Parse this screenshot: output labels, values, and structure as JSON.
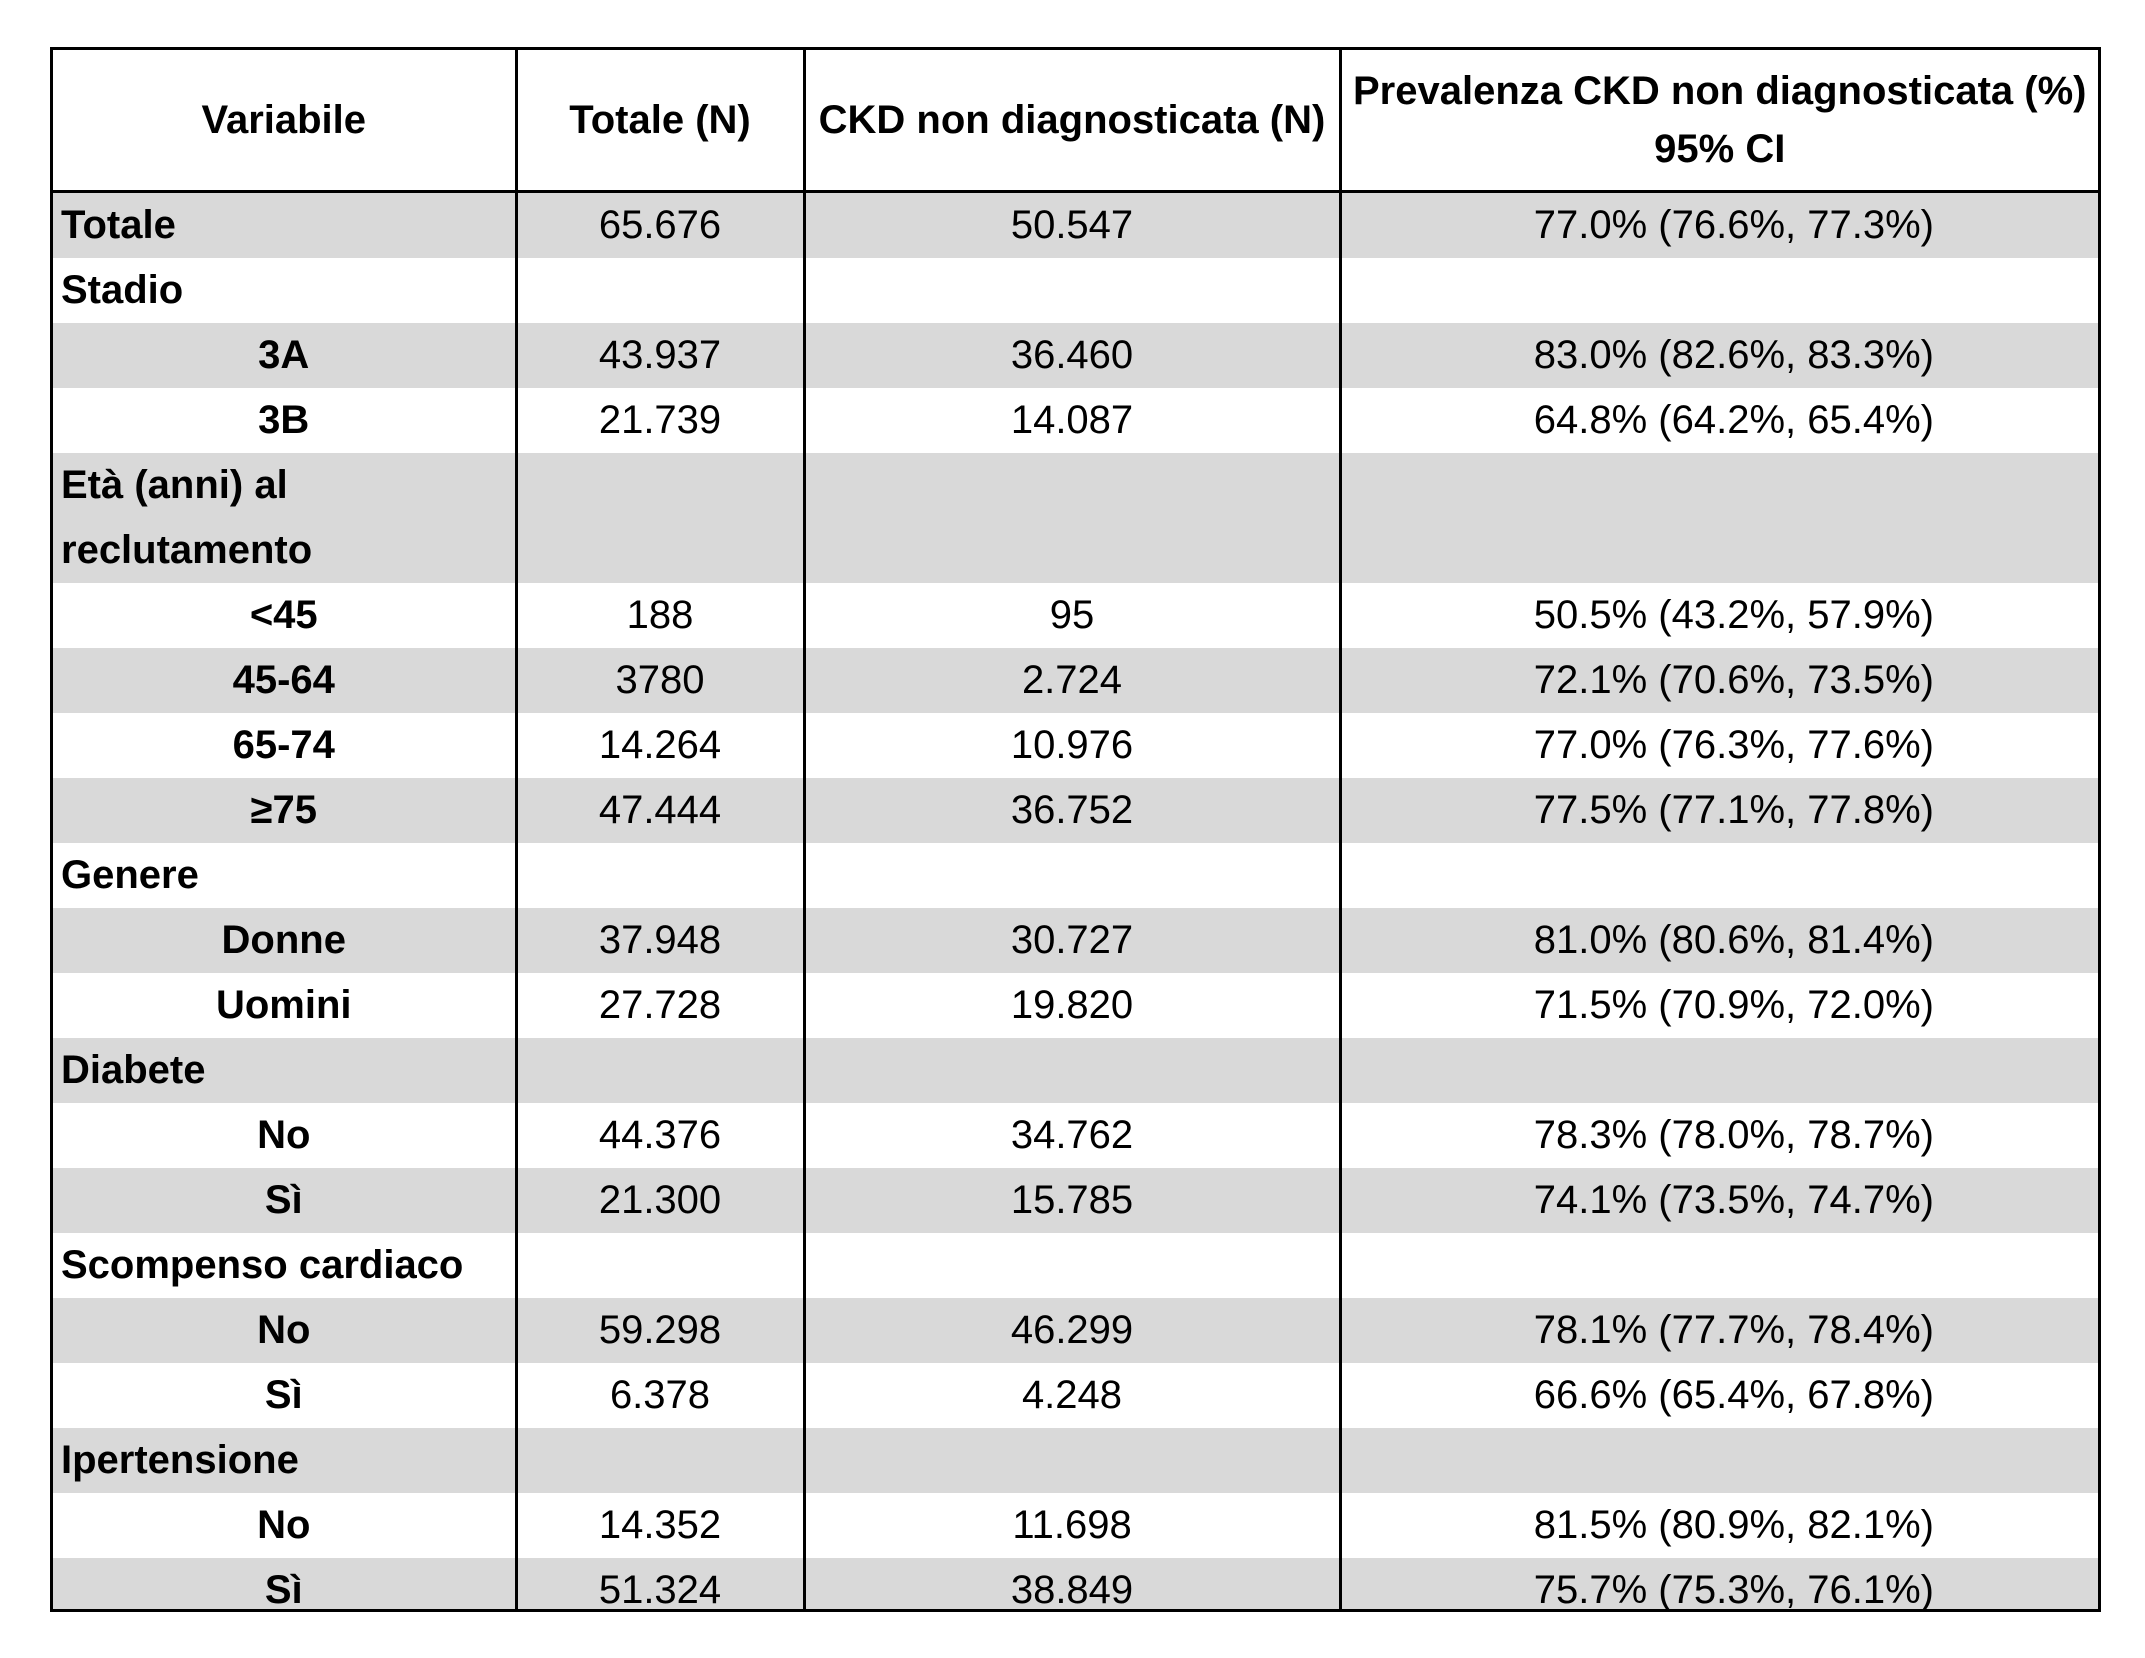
{
  "table": {
    "headers": {
      "variabile": "Variabile",
      "totale": "Totale (N)",
      "ckd": "CKD non diagnosticata (N)",
      "prevalenza": "Prevalenza CKD non diagnosticata (%) 95% CI"
    },
    "rows": [
      {
        "label": "Totale",
        "totale": "65.676",
        "ckd": "50.547",
        "prev": "77.0% (76.6%, 77.3%)"
      },
      {
        "label": "Stadio",
        "totale": "",
        "ckd": "",
        "prev": ""
      },
      {
        "label": "3A",
        "totale": "43.937",
        "ckd": "36.460",
        "prev": "83.0% (82.6%, 83.3%)"
      },
      {
        "label": "3B",
        "totale": "21.739",
        "ckd": "14.087",
        "prev": "64.8% (64.2%, 65.4%)"
      },
      {
        "label": "Età (anni) al reclutamento",
        "totale": "",
        "ckd": "",
        "prev": ""
      },
      {
        "label": "<45",
        "totale": "188",
        "ckd": "95",
        "prev": "50.5% (43.2%, 57.9%)"
      },
      {
        "label": "45-64",
        "totale": "3780",
        "ckd": "2.724",
        "prev": "72.1% (70.6%, 73.5%)"
      },
      {
        "label": "65-74",
        "totale": "14.264",
        "ckd": "10.976",
        "prev": "77.0% (76.3%, 77.6%)"
      },
      {
        "label": "≥75",
        "totale": "47.444",
        "ckd": "36.752",
        "prev": "77.5% (77.1%, 77.8%)"
      },
      {
        "label": "Genere",
        "totale": "",
        "ckd": "",
        "prev": ""
      },
      {
        "label": "Donne",
        "totale": "37.948",
        "ckd": "30.727",
        "prev": "81.0% (80.6%, 81.4%)"
      },
      {
        "label": "Uomini",
        "totale": "27.728",
        "ckd": "19.820",
        "prev": "71.5% (70.9%, 72.0%)"
      },
      {
        "label": "Diabete",
        "totale": "",
        "ckd": "",
        "prev": ""
      },
      {
        "label": "No",
        "totale": "44.376",
        "ckd": "34.762",
        "prev": "78.3% (78.0%, 78.7%)"
      },
      {
        "label": "Sì",
        "totale": "21.300",
        "ckd": "15.785",
        "prev": "74.1% (73.5%, 74.7%)"
      },
      {
        "label": "Scompenso cardiaco",
        "totale": "",
        "ckd": "",
        "prev": ""
      },
      {
        "label": "No",
        "totale": "59.298",
        "ckd": "46.299",
        "prev": "78.1% (77.7%, 78.4%)"
      },
      {
        "label": "Sì",
        "totale": "6.378",
        "ckd": "4.248",
        "prev": "66.6% (65.4%, 67.8%)"
      },
      {
        "label": "Ipertensione",
        "totale": "",
        "ckd": "",
        "prev": ""
      },
      {
        "label": "No",
        "totale": "14.352",
        "ckd": "11.698",
        "prev": "81.5% (80.9%, 82.1%)"
      },
      {
        "label": "Sì",
        "totale": "51.324",
        "ckd": "38.849",
        "prev": "75.7% (75.3%, 76.1%)"
      }
    ]
  }
}
